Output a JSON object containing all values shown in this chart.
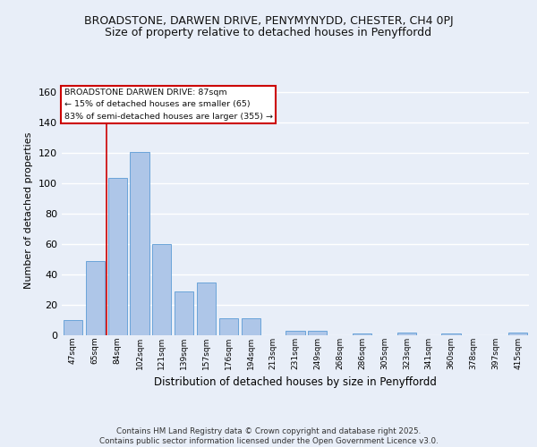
{
  "title1": "BROADSTONE, DARWEN DRIVE, PENYMYNYDD, CHESTER, CH4 0PJ",
  "title2": "Size of property relative to detached houses in Penyffordd",
  "xlabel": "Distribution of detached houses by size in Penyffordd",
  "ylabel": "Number of detached properties",
  "categories": [
    "47sqm",
    "65sqm",
    "84sqm",
    "102sqm",
    "121sqm",
    "139sqm",
    "157sqm",
    "176sqm",
    "194sqm",
    "213sqm",
    "231sqm",
    "249sqm",
    "268sqm",
    "286sqm",
    "305sqm",
    "323sqm",
    "341sqm",
    "360sqm",
    "378sqm",
    "397sqm",
    "415sqm"
  ],
  "values": [
    10,
    49,
    104,
    121,
    60,
    29,
    35,
    11,
    11,
    0,
    3,
    3,
    0,
    1,
    0,
    2,
    0,
    1,
    0,
    0,
    2
  ],
  "bar_color": "#aec6e8",
  "bar_edge_color": "#5b9bd5",
  "vline_color": "#cc0000",
  "vline_pos": 1.5,
  "annotation_title": "BROADSTONE DARWEN DRIVE: 87sqm",
  "annotation_line1": "← 15% of detached houses are smaller (65)",
  "annotation_line2": "83% of semi-detached houses are larger (355) →",
  "annotation_box_color": "#cc0000",
  "ylim": [
    0,
    165
  ],
  "yticks": [
    0,
    20,
    40,
    60,
    80,
    100,
    120,
    140,
    160
  ],
  "footer": "Contains HM Land Registry data © Crown copyright and database right 2025.\nContains public sector information licensed under the Open Government Licence v3.0.",
  "bg_color": "#e8eef8",
  "grid_color": "#ffffff",
  "title_fontsize": 9,
  "subtitle_fontsize": 9,
  "bar_width": 0.85
}
